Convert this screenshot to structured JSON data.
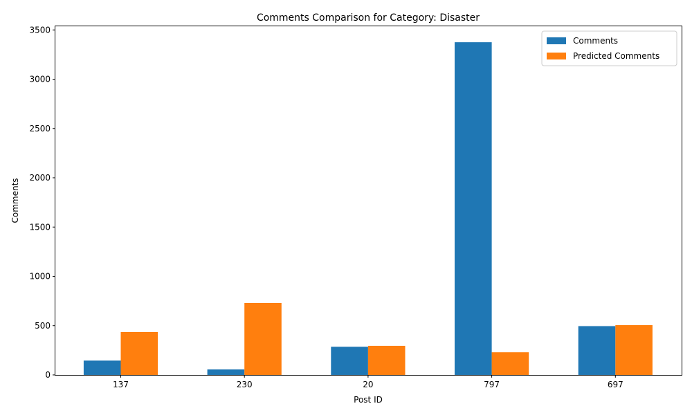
{
  "chart_data": {
    "type": "bar",
    "title": "Comments Comparison for Category: Disaster",
    "xlabel": "Post ID",
    "ylabel": "Comments",
    "categories": [
      "137",
      "230",
      "20",
      "797",
      "697"
    ],
    "series": [
      {
        "name": "Comments",
        "color": "#1f77b4",
        "values": [
          145,
          55,
          285,
          3375,
          495
        ]
      },
      {
        "name": "Predicted Comments",
        "color": "#ff7f0e",
        "values": [
          435,
          730,
          295,
          230,
          505
        ]
      }
    ],
    "ylim": [
      0,
      3537
    ],
    "yticks": [
      0,
      500,
      1000,
      1500,
      2000,
      2500,
      3000,
      3500
    ],
    "grid": false,
    "legend": "top-right"
  }
}
